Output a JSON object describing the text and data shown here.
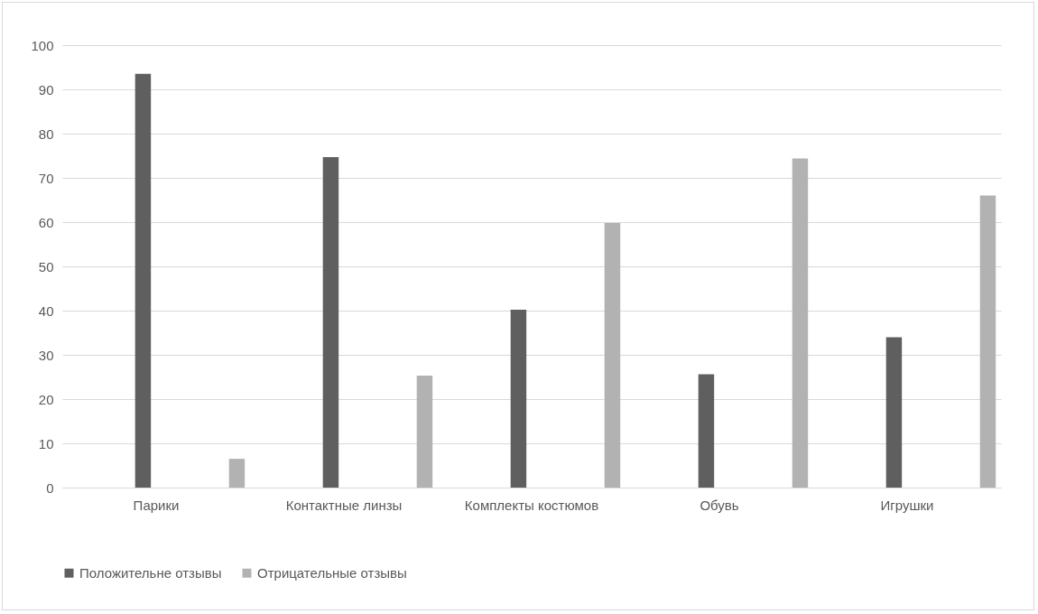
{
  "chart_data": {
    "type": "bar",
    "categories": [
      "Парики",
      "Контактные линзы",
      "Комплекты костюмов",
      "Обувь",
      "Игрушки"
    ],
    "series": [
      {
        "name": "Положительне отзывы",
        "color": "#5f5f5f",
        "values": [
          93.5,
          74.7,
          40.2,
          25.6,
          34
        ]
      },
      {
        "name": "Отрицательные отзывы",
        "color": "#b2b2b2",
        "values": [
          6.5,
          25.3,
          59.8,
          74.4,
          66
        ]
      }
    ],
    "ylim": [
      0,
      100
    ],
    "yticks": [
      0,
      10,
      20,
      30,
      40,
      50,
      60,
      70,
      80,
      90,
      100
    ],
    "grid": "y",
    "legend": "bottom"
  }
}
